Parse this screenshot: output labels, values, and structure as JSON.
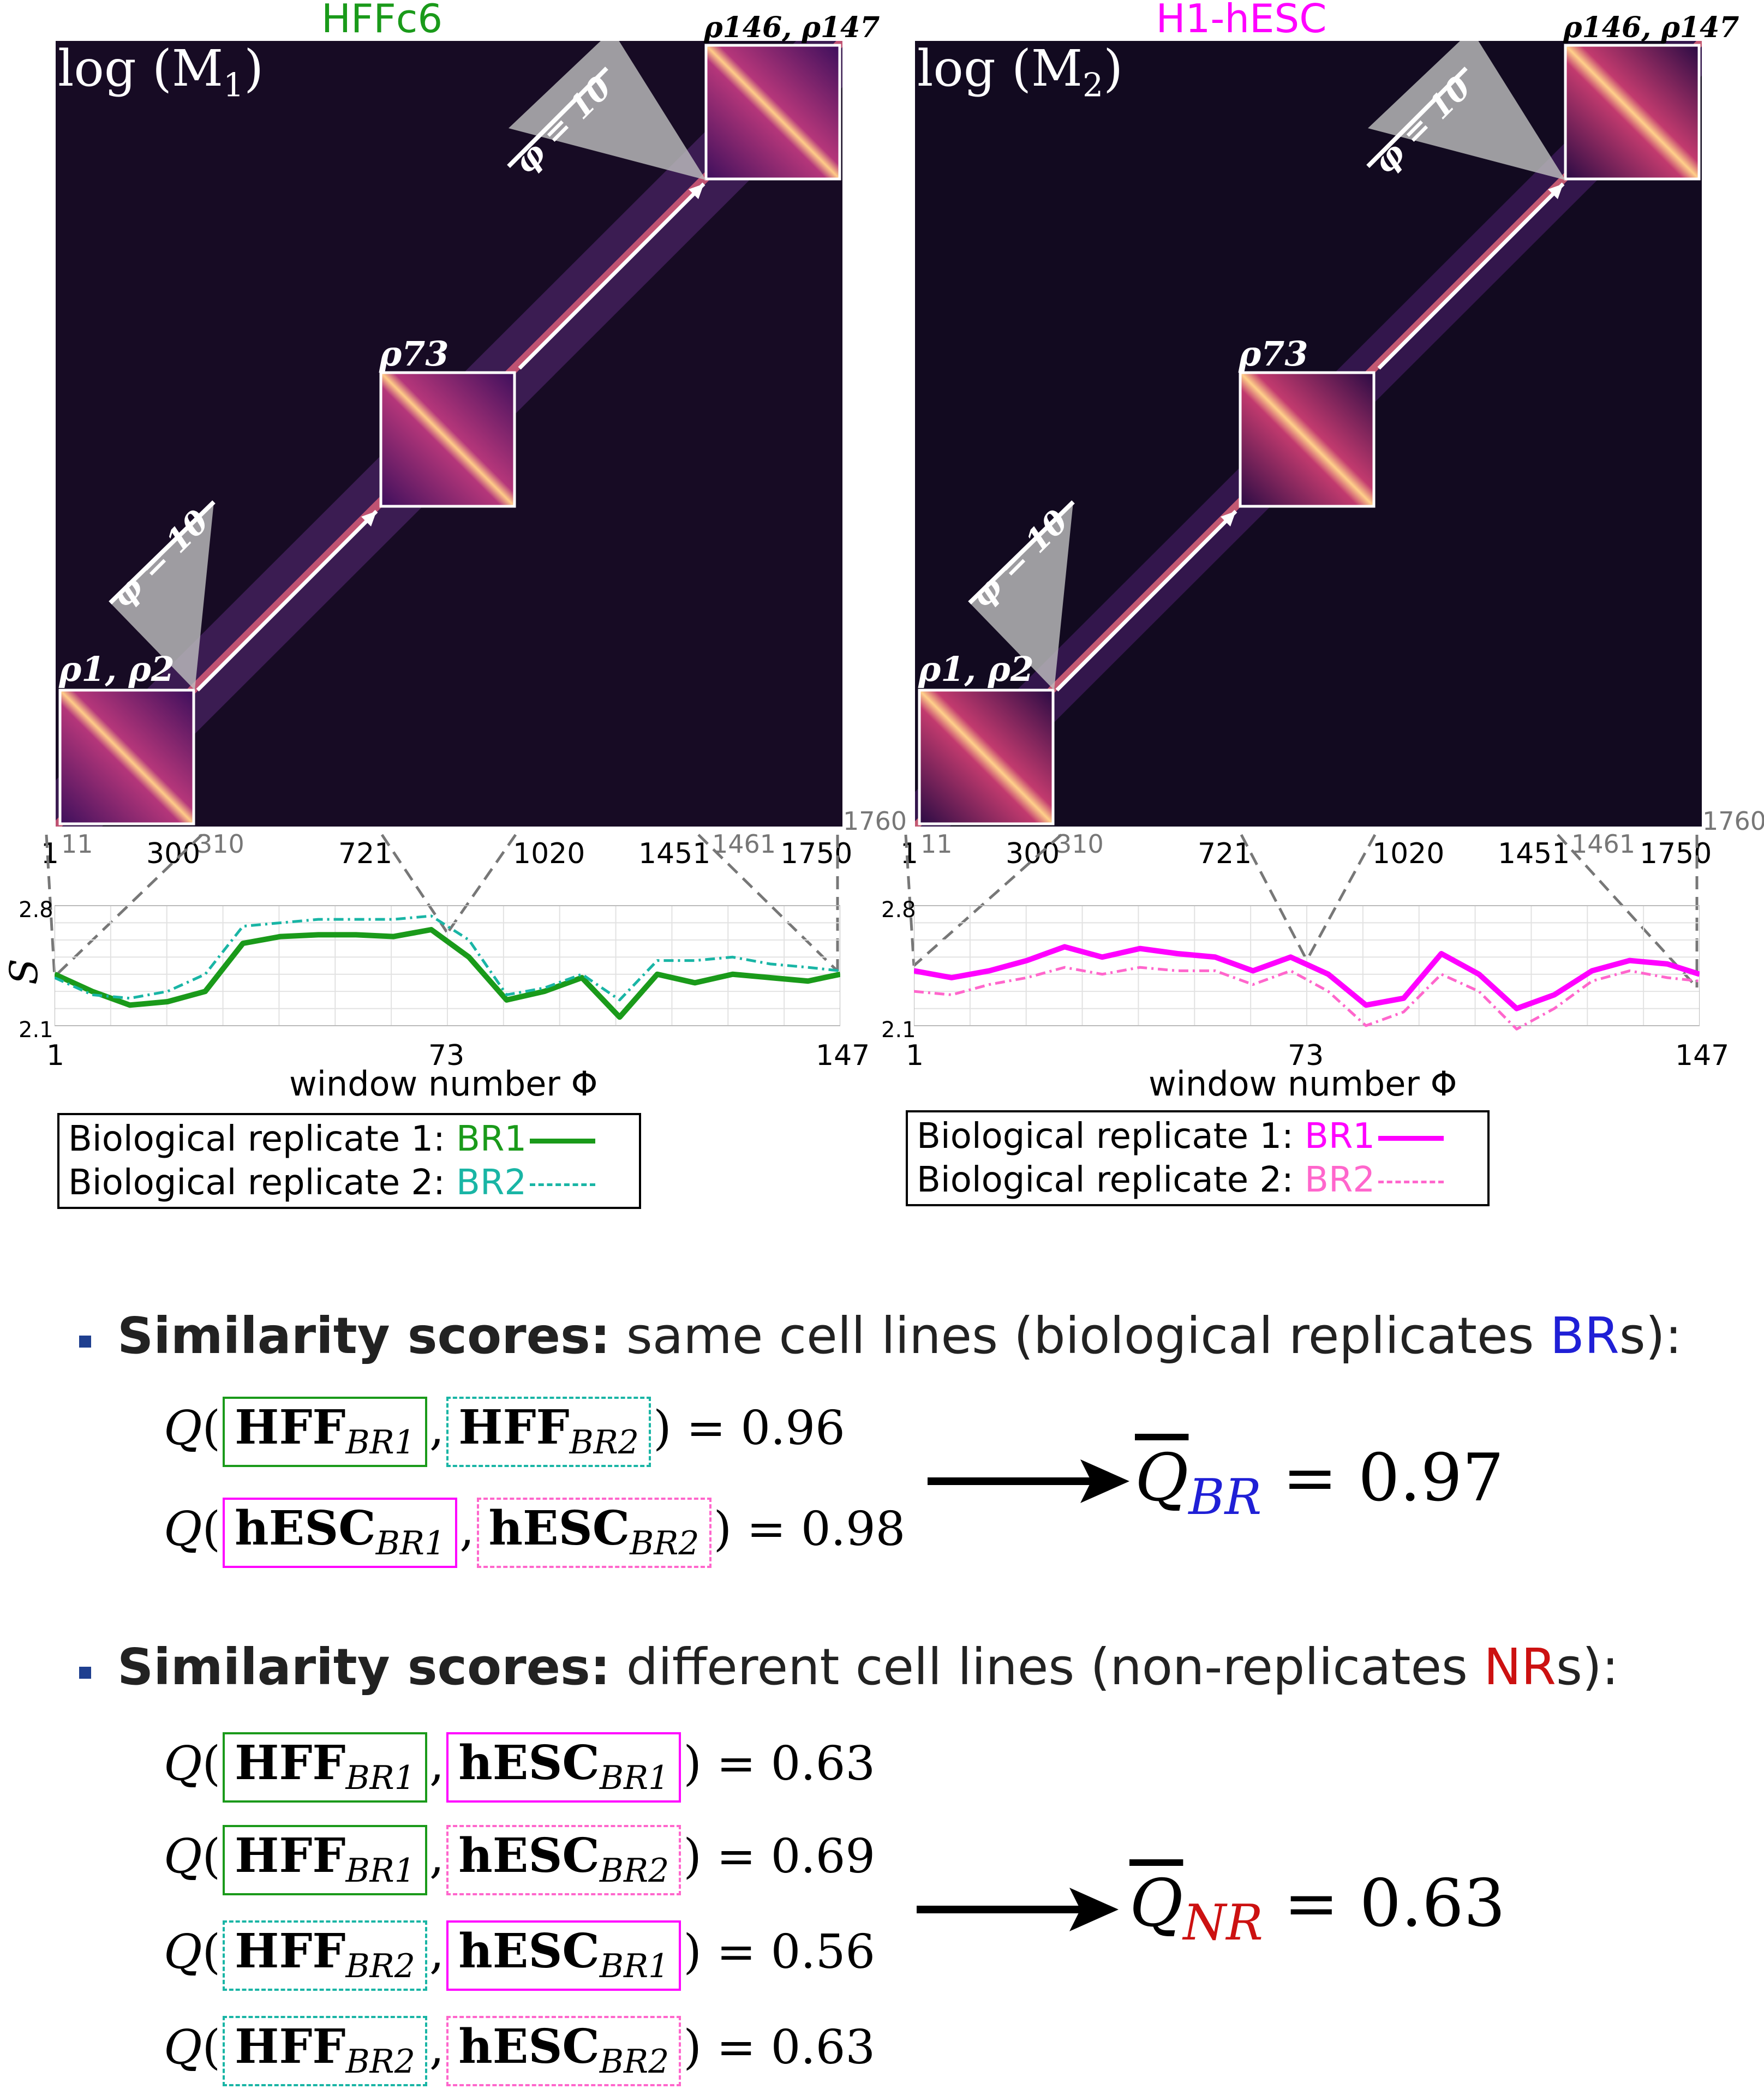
{
  "panels": [
    {
      "title": "HFFc6",
      "title_color": "#1a9a1a",
      "matrix_label": "log (M",
      "matrix_sub": "1",
      "window_first": "ρ1, ρ2",
      "window_mid": "ρ73",
      "window_last": "ρ146, ρ147",
      "phi_label": "φ = 10",
      "ticks": [
        "1",
        "11",
        "300",
        "310",
        "721",
        "1020",
        "1451",
        "1461",
        "1750",
        "1760"
      ],
      "y_label": "S",
      "y_ticks": [
        "2.8",
        "2.1"
      ],
      "x_ticks": [
        "1",
        "73",
        "147"
      ],
      "x_label": "window number Φ",
      "legend": [
        {
          "text": "Biological replicate 1: ",
          "tag": "BR1",
          "color": "#1a9a1a"
        },
        {
          "text": "Biological replicate 2: ",
          "tag": "BR2",
          "color": "#19b5a5"
        }
      ]
    },
    {
      "title": "H1-hESC",
      "title_color": "#ff00ff",
      "matrix_label": "log (M",
      "matrix_sub": "2",
      "window_first": "ρ1, ρ2",
      "window_mid": "ρ73",
      "window_last": "ρ146, ρ147",
      "phi_label": "φ = 10",
      "ticks": [
        "1",
        "11",
        "300",
        "310",
        "721",
        "1020",
        "1451",
        "1461",
        "1750",
        "1760"
      ],
      "y_label": "S",
      "y_ticks": [
        "2.8",
        "2.1"
      ],
      "x_ticks": [
        "1",
        "73",
        "147"
      ],
      "x_label": "window number Φ",
      "legend": [
        {
          "text": "Biological replicate 1: ",
          "tag": "BR1",
          "color": "#ff00ff"
        },
        {
          "text": "Biological replicate 2: ",
          "tag": "BR2",
          "color": "#ff66cc"
        }
      ]
    }
  ],
  "section_br": {
    "head_bold": "Similarity scores:",
    "head_rest": " same cell lines (biological replicates ",
    "head_tag": "BR",
    "head_tail": "s):",
    "tag_color": "#1f1fd6",
    "rows": [
      {
        "a": "HFF",
        "a_sub": "BR1",
        "b": "HFF",
        "b_sub": "BR2",
        "value": "0.96"
      },
      {
        "a": "hESC",
        "a_sub": "BR1",
        "b": "hESC",
        "b_sub": "BR2",
        "value": "0.98"
      }
    ],
    "mean_label": "Q",
    "mean_sub": "BR",
    "mean_value": "0.97"
  },
  "section_nr": {
    "head_bold": "Similarity scores:",
    "head_rest": " different cell lines (non-replicates ",
    "head_tag": "NR",
    "head_tail": "s):",
    "tag_color": "#cc1111",
    "rows": [
      {
        "a": "HFF",
        "a_sub": "BR1",
        "b": "hESC",
        "b_sub": "BR1",
        "value": "0.63"
      },
      {
        "a": "HFF",
        "a_sub": "BR1",
        "b": "hESC",
        "b_sub": "BR2",
        "value": "0.69"
      },
      {
        "a": "HFF",
        "a_sub": "BR2",
        "b": "hESC",
        "b_sub": "BR1",
        "value": "0.56"
      },
      {
        "a": "HFF",
        "a_sub": "BR2",
        "b": "hESC",
        "b_sub": "BR2",
        "value": "0.63"
      }
    ],
    "mean_label": "Q",
    "mean_sub": "NR",
    "mean_value": "0.63"
  },
  "chart_data": [
    {
      "type": "line",
      "title": "HFFc6",
      "xlabel": "window number Φ",
      "ylabel": "S",
      "ylim": [
        2.1,
        2.8
      ],
      "xlim": [
        1,
        147
      ],
      "x": [
        1,
        8,
        15,
        22,
        29,
        36,
        43,
        50,
        57,
        64,
        71,
        78,
        85,
        92,
        99,
        106,
        113,
        120,
        127,
        134,
        141,
        147
      ],
      "series": [
        {
          "name": "BR1",
          "color": "#1a9a1a",
          "values": [
            2.4,
            2.3,
            2.22,
            2.24,
            2.3,
            2.58,
            2.62,
            2.63,
            2.63,
            2.62,
            2.66,
            2.5,
            2.25,
            2.3,
            2.38,
            2.15,
            2.4,
            2.35,
            2.4,
            2.38,
            2.36,
            2.4
          ]
        },
        {
          "name": "BR2",
          "color": "#19b5a5",
          "values": [
            2.38,
            2.28,
            2.26,
            2.3,
            2.4,
            2.68,
            2.7,
            2.72,
            2.72,
            2.72,
            2.74,
            2.6,
            2.28,
            2.32,
            2.4,
            2.25,
            2.48,
            2.48,
            2.5,
            2.46,
            2.44,
            2.42
          ]
        }
      ]
    },
    {
      "type": "line",
      "title": "H1-hESC",
      "xlabel": "window number Φ",
      "ylabel": "S",
      "ylim": [
        2.1,
        2.8
      ],
      "xlim": [
        1,
        147
      ],
      "x": [
        1,
        8,
        15,
        22,
        29,
        36,
        43,
        50,
        57,
        64,
        71,
        78,
        85,
        92,
        99,
        106,
        113,
        120,
        127,
        134,
        141,
        147
      ],
      "series": [
        {
          "name": "BR1",
          "color": "#ff00ff",
          "values": [
            2.42,
            2.38,
            2.42,
            2.48,
            2.56,
            2.5,
            2.55,
            2.52,
            2.5,
            2.42,
            2.5,
            2.4,
            2.22,
            2.26,
            2.52,
            2.4,
            2.2,
            2.28,
            2.42,
            2.48,
            2.46,
            2.4
          ]
        },
        {
          "name": "BR2",
          "color": "#ff66cc",
          "values": [
            2.3,
            2.28,
            2.34,
            2.38,
            2.44,
            2.4,
            2.44,
            2.42,
            2.42,
            2.34,
            2.42,
            2.3,
            2.1,
            2.18,
            2.4,
            2.3,
            2.08,
            2.2,
            2.36,
            2.42,
            2.38,
            2.36
          ]
        }
      ]
    }
  ]
}
